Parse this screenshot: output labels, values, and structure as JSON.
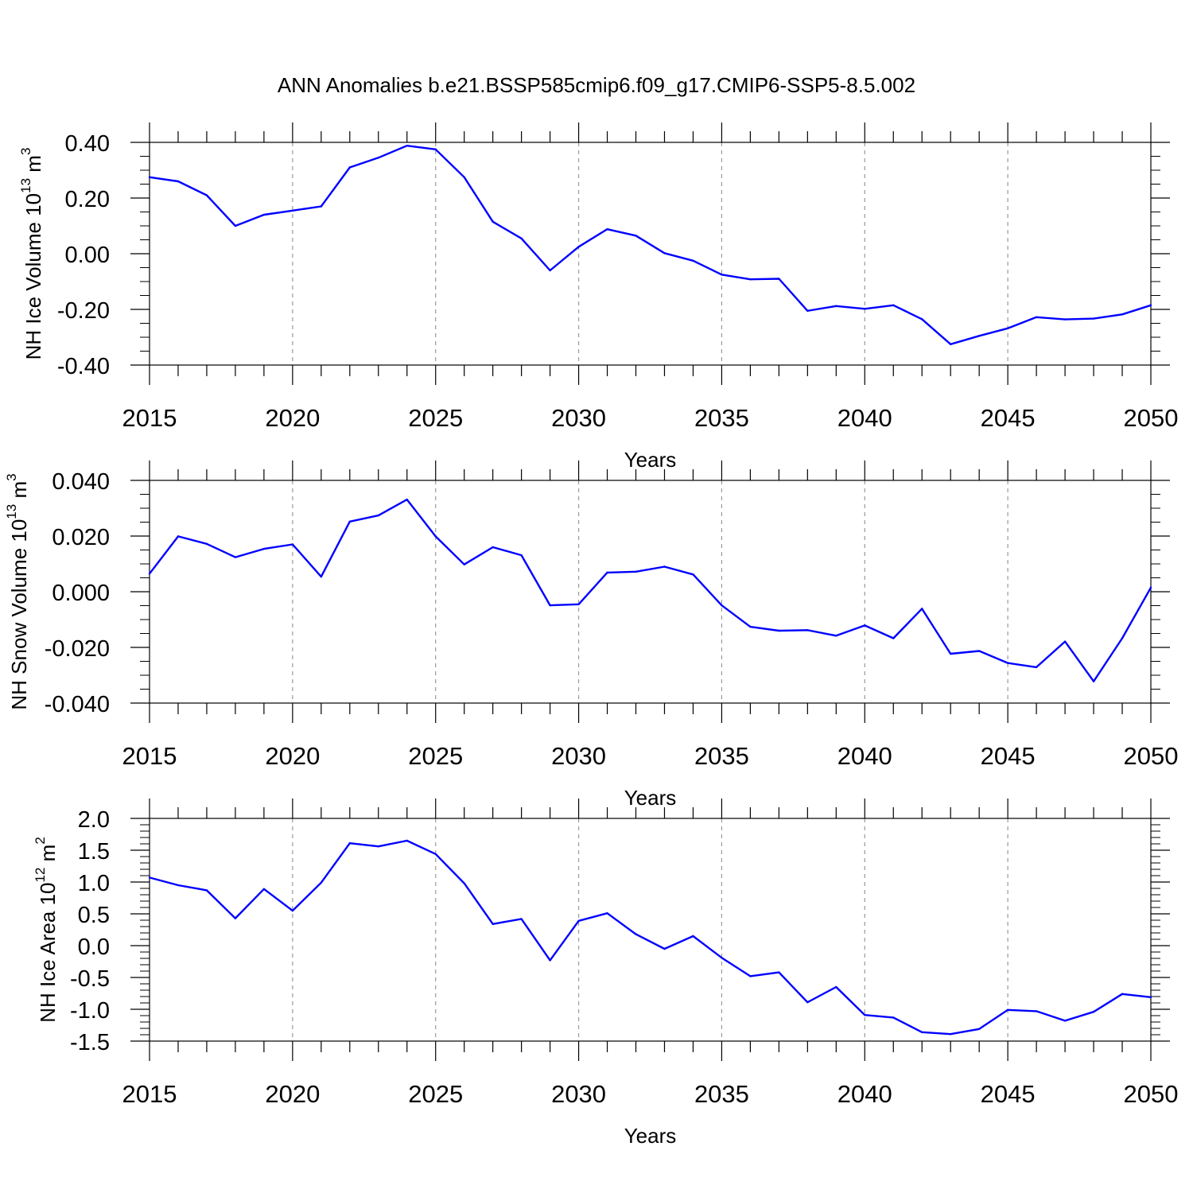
{
  "title": "ANN Anomalies b.e21.BSSP585cmip6.f09_g17.CMIP6-SSP5-8.5.002",
  "colors": {
    "line": "#0000ff",
    "axis": "#000000",
    "grid": "#999999"
  },
  "panels": [
    {
      "ylabel": {
        "main": "NH Ice Volume 10",
        "exp": "13",
        "unit": " m",
        "unit_exp": "3"
      },
      "xlabel": "Years",
      "y_tick_labels": [
        "0.40",
        "0.20",
        "0.00",
        "-0.20",
        "-0.40"
      ],
      "x_tick_labels": [
        "2015",
        "2020",
        "2025",
        "2030",
        "2035",
        "2040",
        "2045",
        "2050"
      ]
    },
    {
      "ylabel": {
        "main": "NH Snow Volume 10",
        "exp": "13",
        "unit": " m",
        "unit_exp": "3"
      },
      "xlabel": "Years",
      "y_tick_labels": [
        "0.040",
        "0.020",
        "0.000",
        "-0.020",
        "-0.040"
      ],
      "x_tick_labels": [
        "2015",
        "2020",
        "2025",
        "2030",
        "2035",
        "2040",
        "2045",
        "2050"
      ]
    },
    {
      "ylabel": {
        "main": "NH Ice Area 10",
        "exp": "12",
        "unit": " m",
        "unit_exp": "2"
      },
      "xlabel": "Years",
      "y_tick_labels": [
        "2.0",
        "1.5",
        "1.0",
        "0.5",
        "0.0",
        "-0.5",
        "-1.0",
        "-1.5"
      ],
      "x_tick_labels": [
        "2015",
        "2020",
        "2025",
        "2030",
        "2035",
        "2040",
        "2045",
        "2050"
      ]
    }
  ],
  "chart_data": [
    {
      "type": "line",
      "title": "ANN Anomalies b.e21.BSSP585cmip6.f09_g17.CMIP6-SSP5-8.5.002",
      "xlabel": "Years",
      "ylabel": "NH Ice Volume 10^13 m^3",
      "xlim": [
        2015,
        2050
      ],
      "ylim": [
        -0.4,
        0.4
      ],
      "y_ticks": [
        0.4,
        0.2,
        0.0,
        -0.2,
        -0.4
      ],
      "x_ticks": [
        2015,
        2020,
        2025,
        2030,
        2035,
        2040,
        2045,
        2050
      ],
      "grid": "vertical dashed at major x ticks",
      "x": [
        2015,
        2016,
        2017,
        2018,
        2019,
        2020,
        2021,
        2022,
        2023,
        2024,
        2025,
        2026,
        2027,
        2028,
        2029,
        2030,
        2031,
        2032,
        2033,
        2034,
        2035,
        2036,
        2037,
        2038,
        2039,
        2040,
        2041,
        2042,
        2043,
        2044,
        2045,
        2046,
        2047,
        2048,
        2049,
        2050
      ],
      "values": [
        0.275,
        0.26,
        0.21,
        0.1,
        0.14,
        0.155,
        0.17,
        0.31,
        0.345,
        0.388,
        0.375,
        0.275,
        0.115,
        0.055,
        -0.06,
        0.025,
        0.088,
        0.065,
        0.002,
        -0.025,
        -0.075,
        -0.092,
        -0.09,
        -0.205,
        -0.188,
        -0.198,
        -0.185,
        -0.235,
        -0.325,
        -0.295,
        -0.268,
        -0.228,
        -0.236,
        -0.233,
        -0.218,
        -0.185
      ]
    },
    {
      "type": "line",
      "xlabel": "Years",
      "ylabel": "NH Snow Volume 10^13 m^3",
      "xlim": [
        2015,
        2050
      ],
      "ylim": [
        -0.04,
        0.04
      ],
      "y_ticks": [
        0.04,
        0.02,
        0.0,
        -0.02,
        -0.04
      ],
      "x_ticks": [
        2015,
        2020,
        2025,
        2030,
        2035,
        2040,
        2045,
        2050
      ],
      "grid": "vertical dashed at major x ticks",
      "x": [
        2015,
        2016,
        2017,
        2018,
        2019,
        2020,
        2021,
        2022,
        2023,
        2024,
        2025,
        2026,
        2027,
        2028,
        2029,
        2030,
        2031,
        2032,
        2033,
        2034,
        2035,
        2036,
        2037,
        2038,
        2039,
        2040,
        2041,
        2042,
        2043,
        2044,
        2045,
        2046,
        2047,
        2048,
        2049,
        2050
      ],
      "values": [
        0.0065,
        0.0199,
        0.0172,
        0.0124,
        0.0154,
        0.017,
        0.0054,
        0.0252,
        0.0274,
        0.0331,
        0.0199,
        0.0098,
        0.016,
        0.0131,
        -0.0049,
        -0.0045,
        0.0069,
        0.0072,
        0.009,
        0.0062,
        -0.0049,
        -0.0126,
        -0.014,
        -0.0138,
        -0.0158,
        -0.0121,
        -0.0167,
        -0.0061,
        -0.0223,
        -0.0213,
        -0.0256,
        -0.0271,
        -0.0179,
        -0.0322,
        -0.0167,
        0.0015
      ]
    },
    {
      "type": "line",
      "xlabel": "Years",
      "ylabel": "NH Ice Area 10^12 m^2",
      "xlim": [
        2015,
        2050
      ],
      "ylim": [
        -1.5,
        2.0
      ],
      "y_ticks": [
        2.0,
        1.5,
        1.0,
        0.5,
        0.0,
        -0.5,
        -1.0,
        -1.5
      ],
      "x_ticks": [
        2015,
        2020,
        2025,
        2030,
        2035,
        2040,
        2045,
        2050
      ],
      "grid": "vertical dashed at major x ticks",
      "x": [
        2015,
        2016,
        2017,
        2018,
        2019,
        2020,
        2021,
        2022,
        2023,
        2024,
        2025,
        2026,
        2027,
        2028,
        2029,
        2030,
        2031,
        2032,
        2033,
        2034,
        2035,
        2036,
        2037,
        2038,
        2039,
        2040,
        2041,
        2042,
        2043,
        2044,
        2045,
        2046,
        2047,
        2048,
        2049,
        2050
      ],
      "values": [
        1.07,
        0.95,
        0.87,
        0.43,
        0.89,
        0.55,
        0.99,
        1.61,
        1.56,
        1.65,
        1.44,
        0.98,
        0.34,
        0.42,
        -0.23,
        0.39,
        0.51,
        0.18,
        -0.05,
        0.15,
        -0.19,
        -0.48,
        -0.42,
        -0.89,
        -0.65,
        -1.09,
        -1.13,
        -1.36,
        -1.39,
        -1.31,
        -1.01,
        -1.03,
        -1.18,
        -1.04,
        -0.76,
        -0.81
      ]
    }
  ]
}
